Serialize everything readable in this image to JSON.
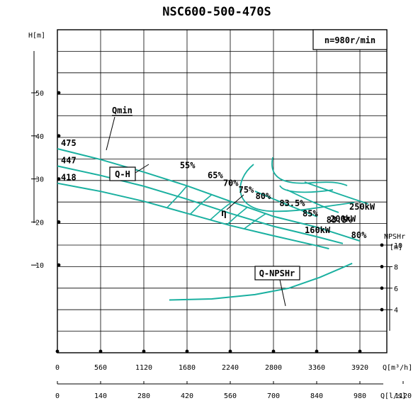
{
  "chart_data": {
    "type": "line",
    "title": "NSC600-500-470S",
    "speed_label": "n=980r/min",
    "head_axis": {
      "label": "H[m]",
      "ticks": [
        {
          "value": 10,
          "label": "10"
        },
        {
          "value": 20,
          "label": "20"
        },
        {
          "value": 30,
          "label": "30"
        },
        {
          "value": 40,
          "label": "40"
        },
        {
          "value": 50,
          "label": "50"
        }
      ],
      "range": [
        0,
        55
      ]
    },
    "npsh_axis": {
      "label": "NPSHr",
      "unit": "[m]",
      "ticks": [
        {
          "value": 4,
          "label": "4"
        },
        {
          "value": 6,
          "label": "6"
        },
        {
          "value": 8,
          "label": "8"
        },
        {
          "value": 10,
          "label": "10"
        }
      ]
    },
    "x_axis_m3h": {
      "label": "Q[m³/h]",
      "ticks": [
        {
          "value": 0,
          "label": "0"
        },
        {
          "value": 560,
          "label": "560"
        },
        {
          "value": 1120,
          "label": "1120"
        },
        {
          "value": 1680,
          "label": "1680"
        },
        {
          "value": 2240,
          "label": "2240"
        },
        {
          "value": 2800,
          "label": "2800"
        },
        {
          "value": 3360,
          "label": "3360"
        },
        {
          "value": 3920,
          "label": "3920"
        }
      ]
    },
    "x_axis_ls": {
      "label": "Q[l/s]",
      "ticks": [
        {
          "value": 0,
          "label": "0"
        },
        {
          "value": 140,
          "label": "140"
        },
        {
          "value": 280,
          "label": "280"
        },
        {
          "value": 420,
          "label": "420"
        },
        {
          "value": 560,
          "label": "560"
        },
        {
          "value": 700,
          "label": "700"
        },
        {
          "value": 840,
          "label": "840"
        },
        {
          "value": 980,
          "label": "980"
        },
        {
          "value": 1120,
          "label": "1120"
        }
      ]
    },
    "curve_color": "#1ab0a0",
    "impeller_curves": [
      {
        "label": "475",
        "points": [
          [
            0,
            37.0
          ],
          [
            560,
            34.5
          ],
          [
            1120,
            31.6
          ],
          [
            1680,
            28.4
          ],
          [
            2240,
            24.8
          ],
          [
            2800,
            21.3
          ],
          [
            3360,
            18.8
          ],
          [
            3920,
            15.6
          ]
        ]
      },
      {
        "label": "447",
        "points": [
          [
            0,
            33.0
          ],
          [
            560,
            30.8
          ],
          [
            1120,
            28.3
          ],
          [
            1680,
            25.3
          ],
          [
            2240,
            22.0
          ],
          [
            2800,
            19.0
          ],
          [
            3360,
            16.6
          ],
          [
            3700,
            15.0
          ]
        ]
      },
      {
        "label": "418",
        "points": [
          [
            0,
            29.0
          ],
          [
            560,
            27.1
          ],
          [
            1120,
            24.8
          ],
          [
            1680,
            22.0
          ],
          [
            2240,
            19.2
          ],
          [
            2800,
            16.8
          ],
          [
            3360,
            14.5
          ],
          [
            3520,
            13.8
          ]
        ]
      }
    ],
    "efficiency_labels": [
      {
        "label": "55%",
        "q": 1660,
        "h": 32.5
      },
      {
        "label": "65%",
        "q": 2020,
        "h": 30.2
      },
      {
        "label": "70%",
        "q": 2220,
        "h": 28.4
      },
      {
        "label": "75%",
        "q": 2420,
        "h": 26.8
      },
      {
        "label": "80%",
        "q": 2640,
        "h": 25.3
      },
      {
        "label": "83.5%",
        "q": 2950,
        "h": 23.7
      },
      {
        "label": "85%",
        "q": 3250,
        "h": 21.3
      },
      {
        "label": "83.5%",
        "q": 3560,
        "h": 19.8
      },
      {
        "label": "80%",
        "q": 3880,
        "h": 16.3
      }
    ],
    "power_labels": [
      {
        "label": "250kW"
      },
      {
        "label": "200kW"
      },
      {
        "label": "160kW"
      }
    ],
    "annotations": {
      "qmin": "Qmin",
      "qh": "Q-H",
      "eta": "η",
      "qnpsh": "Q-NPSHr"
    },
    "npsh_curve": {
      "points": [
        [
          1450,
          4.9
        ],
        [
          2000,
          5.0
        ],
        [
          2560,
          5.4
        ],
        [
          3000,
          6.0
        ],
        [
          3400,
          7.0
        ],
        [
          3660,
          7.8
        ],
        [
          3820,
          8.3
        ]
      ]
    }
  }
}
